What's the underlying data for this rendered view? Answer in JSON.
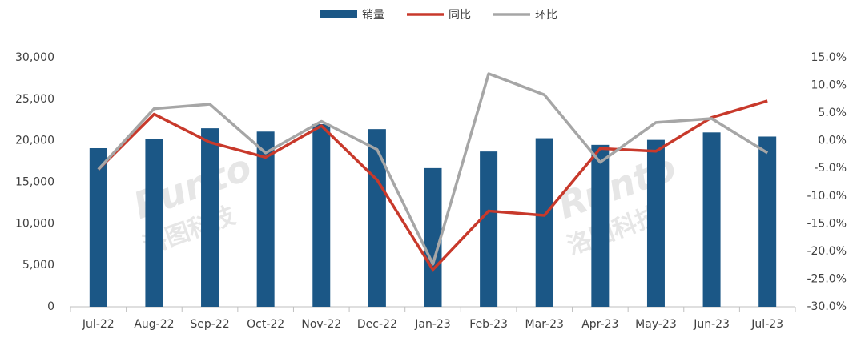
{
  "chart_data": {
    "type": "bar",
    "categories": [
      "Jul-22",
      "Aug-22",
      "Sep-22",
      "Oct-22",
      "Nov-22",
      "Dec-22",
      "Jan-23",
      "Feb-23",
      "Mar-23",
      "Apr-23",
      "May-23",
      "Jun-23",
      "Jul-23"
    ],
    "series": [
      {
        "name": "销量",
        "type": "bar",
        "color": "#1b5786",
        "values": [
          19100,
          20200,
          21500,
          21100,
          22000,
          21400,
          16700,
          18700,
          20300,
          19500,
          20100,
          21000,
          20500
        ]
      },
      {
        "name": "同比",
        "type": "line",
        "axis": "y2",
        "color": "#c8392b",
        "values": [
          -5.2,
          4.8,
          -0.3,
          -3.0,
          2.7,
          -7.1,
          -23.3,
          -12.7,
          -13.5,
          -1.4,
          -1.9,
          4.2,
          7.2
        ]
      },
      {
        "name": "环比",
        "type": "line",
        "axis": "y2",
        "color": "#a6a6a6",
        "values": [
          -5.2,
          5.8,
          6.6,
          -2.2,
          3.5,
          -1.6,
          -22.3,
          12.1,
          8.3,
          -3.9,
          3.3,
          4.0,
          -2.2
        ]
      }
    ],
    "ylim": [
      0,
      30000
    ],
    "yticks": [
      0,
      {
        "value": 5000,
        "label": "5,000"
      },
      {
        "value": 10000,
        "label": "10,000"
      },
      {
        "value": 15000,
        "label": "15,000"
      },
      {
        "value": 20000,
        "label": "20,000"
      },
      {
        "value": 25000,
        "label": "25,000"
      },
      {
        "value": 30000,
        "label": "30,000"
      }
    ],
    "y2lim": [
      -30,
      15
    ],
    "y2ticks": [
      {
        "value": -30,
        "label": "-30.0%"
      },
      {
        "value": -25,
        "label": "-25.0%"
      },
      {
        "value": -20,
        "label": "-20.0%"
      },
      {
        "value": -15,
        "label": "-15.0%"
      },
      {
        "value": -10,
        "label": "-10.0%"
      },
      {
        "value": -5,
        "label": "-5.0%"
      },
      {
        "value": 0,
        "label": "0.0%"
      },
      {
        "value": 5,
        "label": "5.0%"
      },
      {
        "value": 10,
        "label": "10.0%"
      },
      {
        "value": 15,
        "label": "15.0%"
      }
    ],
    "watermark": [
      "Runto",
      "洛图科技"
    ],
    "legend": "top"
  }
}
